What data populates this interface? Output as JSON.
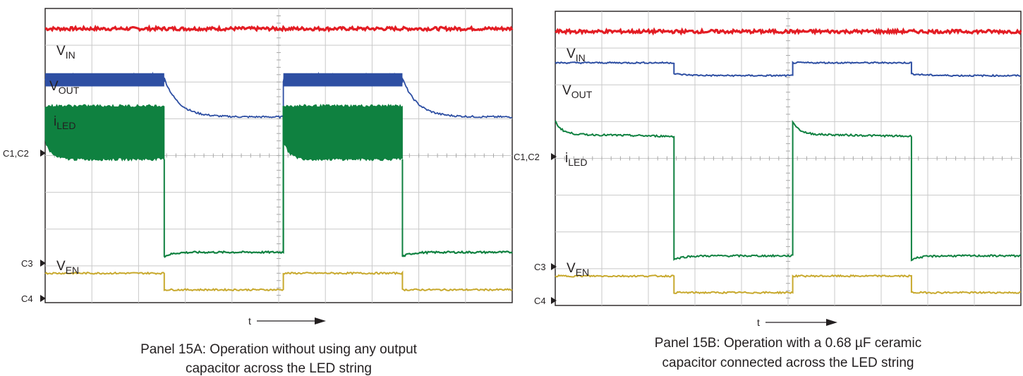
{
  "chart_data": [
    {
      "type": "line",
      "panel": "A",
      "caption": [
        "Panel 15A: Operation without using any output",
        "capacitor across the LED string"
      ],
      "time_axis_label": "t",
      "channel_markers": [
        "C1,C2",
        "C3",
        "C4"
      ],
      "grid": true,
      "divisions": {
        "x": 10,
        "y": 8
      },
      "series": [
        {
          "name": "V",
          "sub": "IN",
          "color": "#e31d24",
          "pattern": "constant",
          "level": 7.45
        },
        {
          "name": "V",
          "sub": "OUT",
          "color": "#2e4fa3",
          "pattern": "decay_after_off",
          "on_level": 6.1,
          "off_level": 5.05,
          "segments": [
            [
              0,
              2.55,
              "on"
            ],
            [
              2.55,
              5.1,
              "off"
            ],
            [
              5.1,
              7.65,
              "on"
            ],
            [
              7.65,
              10,
              "off"
            ]
          ]
        },
        {
          "name": "i",
          "sub": "LED",
          "color": "#0f8140",
          "pattern": "ripple_band",
          "band": [
            3.9,
            5.35
          ],
          "off_level": 1.25,
          "segments": [
            [
              0,
              2.55,
              "on"
            ],
            [
              2.55,
              5.1,
              "off"
            ],
            [
              5.1,
              7.65,
              "on"
            ],
            [
              7.65,
              10,
              "off"
            ]
          ]
        },
        {
          "name": "V",
          "sub": "EN",
          "color": "#c8a92e",
          "pattern": "square",
          "high_level": 0.8,
          "low_level": 0.35,
          "segments": [
            [
              0,
              2.55,
              "high"
            ],
            [
              2.55,
              5.1,
              "low"
            ],
            [
              5.1,
              7.65,
              "high"
            ],
            [
              7.65,
              10,
              "low"
            ]
          ]
        }
      ]
    },
    {
      "type": "line",
      "panel": "B",
      "caption": [
        "Panel 15B: Operation with a 0.68 µF ceramic",
        "capacitor connected across the LED string"
      ],
      "time_axis_label": "t",
      "channel_markers": [
        "C1,C2",
        "C3",
        "C4"
      ],
      "grid": true,
      "divisions": {
        "x": 10,
        "y": 8
      },
      "series": [
        {
          "name": "V",
          "sub": "IN",
          "color": "#e31d24",
          "pattern": "constant",
          "level": 7.45
        },
        {
          "name": "V",
          "sub": "OUT",
          "color": "#2e4fa3",
          "pattern": "step",
          "on_level": 6.6,
          "off_level": 6.3,
          "segments": [
            [
              0,
              2.55,
              "on"
            ],
            [
              2.55,
              5.1,
              "off"
            ],
            [
              5.1,
              7.65,
              "on"
            ],
            [
              7.65,
              10,
              "off"
            ]
          ]
        },
        {
          "name": "i",
          "sub": "LED",
          "color": "#0f8140",
          "pattern": "flat_overshoot",
          "on_level": 4.6,
          "off_level": 1.25,
          "segments": [
            [
              0,
              2.55,
              "on"
            ],
            [
              2.55,
              5.1,
              "off"
            ],
            [
              5.1,
              7.65,
              "on"
            ],
            [
              7.65,
              10,
              "off"
            ]
          ]
        },
        {
          "name": "V",
          "sub": "EN",
          "color": "#c8a92e",
          "pattern": "square",
          "high_level": 0.8,
          "low_level": 0.35,
          "segments": [
            [
              0,
              2.55,
              "high"
            ],
            [
              2.55,
              5.1,
              "low"
            ],
            [
              5.1,
              7.65,
              "high"
            ],
            [
              7.65,
              10,
              "low"
            ]
          ]
        }
      ]
    }
  ]
}
